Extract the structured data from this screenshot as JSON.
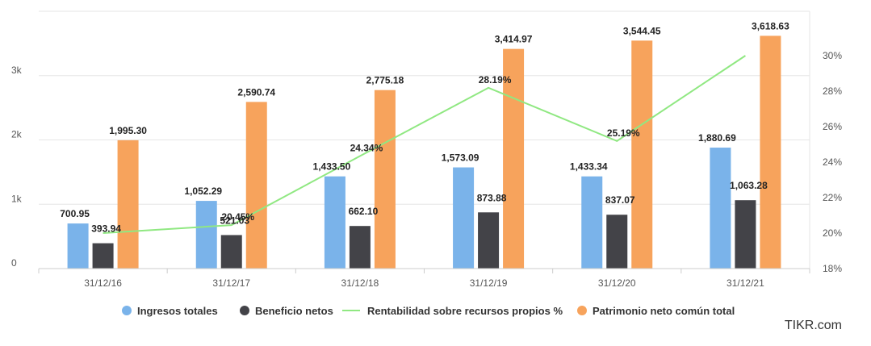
{
  "chart_data": {
    "type": "bar",
    "categories": [
      "31/12/16",
      "31/12/17",
      "31/12/18",
      "31/12/19",
      "31/12/20",
      "31/12/21"
    ],
    "series": [
      {
        "name": "Ingresos totales",
        "type": "bar",
        "axis": "left",
        "color": "#7ab3ea",
        "values": [
          700.95,
          1052.29,
          1433.5,
          1573.09,
          1433.34,
          1880.69
        ],
        "labels": [
          "700.95",
          "1,052.29",
          "1,433.50",
          "1,573.09",
          "1,433.34",
          "1,880.69"
        ]
      },
      {
        "name": "Beneficio netos",
        "type": "bar",
        "axis": "left",
        "color": "#434348",
        "values": [
          393.94,
          521.03,
          662.1,
          873.88,
          837.07,
          1063.28
        ],
        "labels": [
          "393.94",
          "521.03",
          "662.10",
          "873.88",
          "837.07",
          "1,063.28"
        ]
      },
      {
        "name": "Rentabilidad sobre recursos propios %",
        "type": "line",
        "axis": "right",
        "color": "#90e882",
        "values": [
          20.0,
          20.45,
          24.34,
          28.19,
          25.19,
          30.0
        ],
        "labels": [
          "",
          "20.45%",
          "24.34%",
          "28.19%",
          "25.19%",
          ""
        ]
      },
      {
        "name": "Patrimonio neto común total",
        "type": "bar",
        "axis": "left",
        "color": "#f7a35c",
        "values": [
          1995.3,
          2590.74,
          2775.18,
          3414.97,
          3544.45,
          3618.63
        ],
        "labels": [
          "1,995.30",
          "2,590.74",
          "2,775.18",
          "3,414.97",
          "3,544.45",
          "3,618.63"
        ]
      }
    ],
    "ylim_left": [
      0,
      4000
    ],
    "yticks_left": [
      {
        "value": 0,
        "label": "0"
      },
      {
        "value": 1000,
        "label": "1k"
      },
      {
        "value": 2000,
        "label": "2k"
      },
      {
        "value": 3000,
        "label": "3k"
      }
    ],
    "ylim_right": [
      18,
      31
    ],
    "yticks_right": [
      {
        "value": 18,
        "label": "18%"
      },
      {
        "value": 20,
        "label": "20%"
      },
      {
        "value": 22,
        "label": "22%"
      },
      {
        "value": 24,
        "label": "24%"
      },
      {
        "value": 26,
        "label": "26%"
      },
      {
        "value": 28,
        "label": "28%"
      },
      {
        "value": 30,
        "label": "30%"
      }
    ],
    "grid": true,
    "legend_position": "bottom"
  },
  "brand": "TIKR.com"
}
